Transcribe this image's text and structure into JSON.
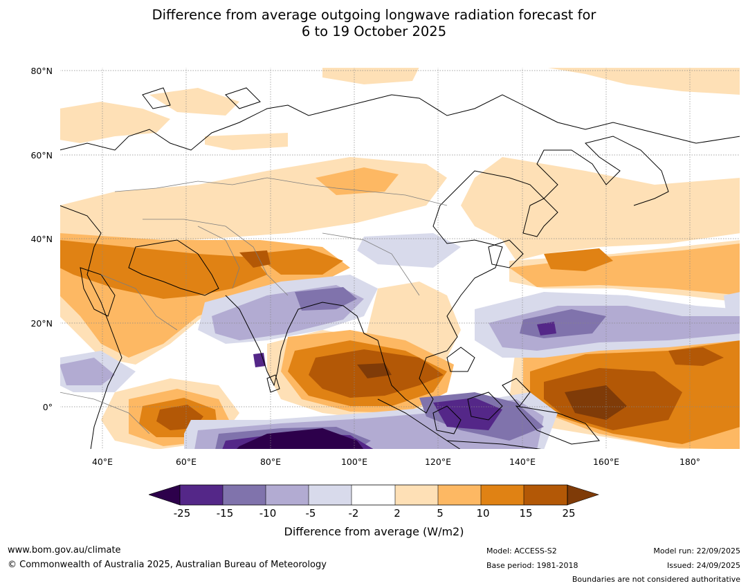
{
  "title": {
    "line1": "Difference from average outgoing longwave radiation forecast for",
    "line2": "6 to 19 October 2025"
  },
  "map": {
    "lat_labels": [
      "80°N",
      "60°N",
      "40°N",
      "20°N",
      "0°"
    ],
    "lon_labels": [
      "40°E",
      "60°E",
      "80°E",
      "100°E",
      "120°E",
      "140°E",
      "160°E",
      "180°"
    ],
    "extent": {
      "lon_min": 30,
      "lon_max": 192,
      "lat_min": -10,
      "lat_max": 81
    }
  },
  "colorbar": {
    "title": "Difference from average (W/m2)",
    "ticks": [
      "-25",
      "-15",
      "-10",
      "-5",
      "-2",
      "2",
      "5",
      "10",
      "15",
      "25"
    ],
    "colors": [
      "#2d004b",
      "#542788",
      "#8073ac",
      "#b2abd2",
      "#d8daeb",
      "#ffffff",
      "#fee0b6",
      "#fdb863",
      "#e08214",
      "#b35806",
      "#7f3b08"
    ]
  },
  "footer": {
    "website": "www.bom.gov.au/climate",
    "copyright": "© Commonwealth of Australia 2025, Australian Bureau of Meteorology",
    "model": "Model: ACCESS-S2",
    "base_period": "Base period: 1981-2018",
    "model_run": "Model run: 22/09/2025",
    "issued": "Issued: 24/09/2025",
    "disclaimer": "Boundaries are not considered authoritative"
  }
}
